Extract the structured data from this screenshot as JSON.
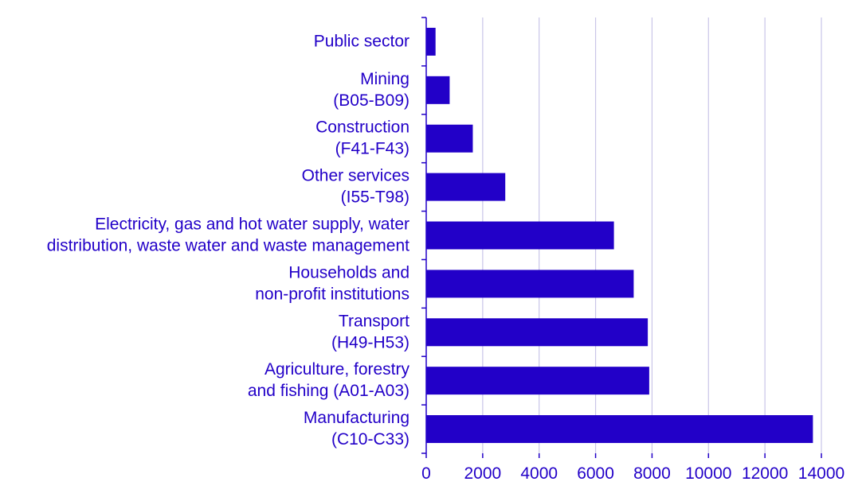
{
  "colors": {
    "bar": "#2200c8",
    "text": "#2200c8",
    "grid": "#c9c5e8",
    "axis": "#2200c8"
  },
  "chart_data": {
    "type": "bar",
    "orientation": "horizontal",
    "title": "",
    "xlabel": "",
    "ylabel": "",
    "xlim": [
      0,
      14000
    ],
    "x_ticks": [
      0,
      2000,
      4000,
      6000,
      8000,
      10000,
      12000,
      14000
    ],
    "x_tick_labels": [
      "0",
      "2000",
      "4000",
      "6000",
      "8000",
      "10000",
      "12000",
      "14000"
    ],
    "grid": true,
    "legend": "none",
    "categories": [
      [
        "Public sector"
      ],
      [
        "Mining",
        "(B05-B09)"
      ],
      [
        "Construction",
        "(F41-F43)"
      ],
      [
        "Other services",
        "(I55-T98)"
      ],
      [
        "Electricity, gas and hot water supply, water",
        "distribution, waste water and waste management"
      ],
      [
        "Households and",
        "non-profit institutions"
      ],
      [
        "Transport",
        "(H49-H53)"
      ],
      [
        "Agriculture, forestry",
        "and fishing (A01-A03)"
      ],
      [
        "Manufacturing",
        "(C10-C33)"
      ]
    ],
    "values": [
      330,
      830,
      1650,
      2800,
      6650,
      7350,
      7850,
      7900,
      13700
    ]
  }
}
